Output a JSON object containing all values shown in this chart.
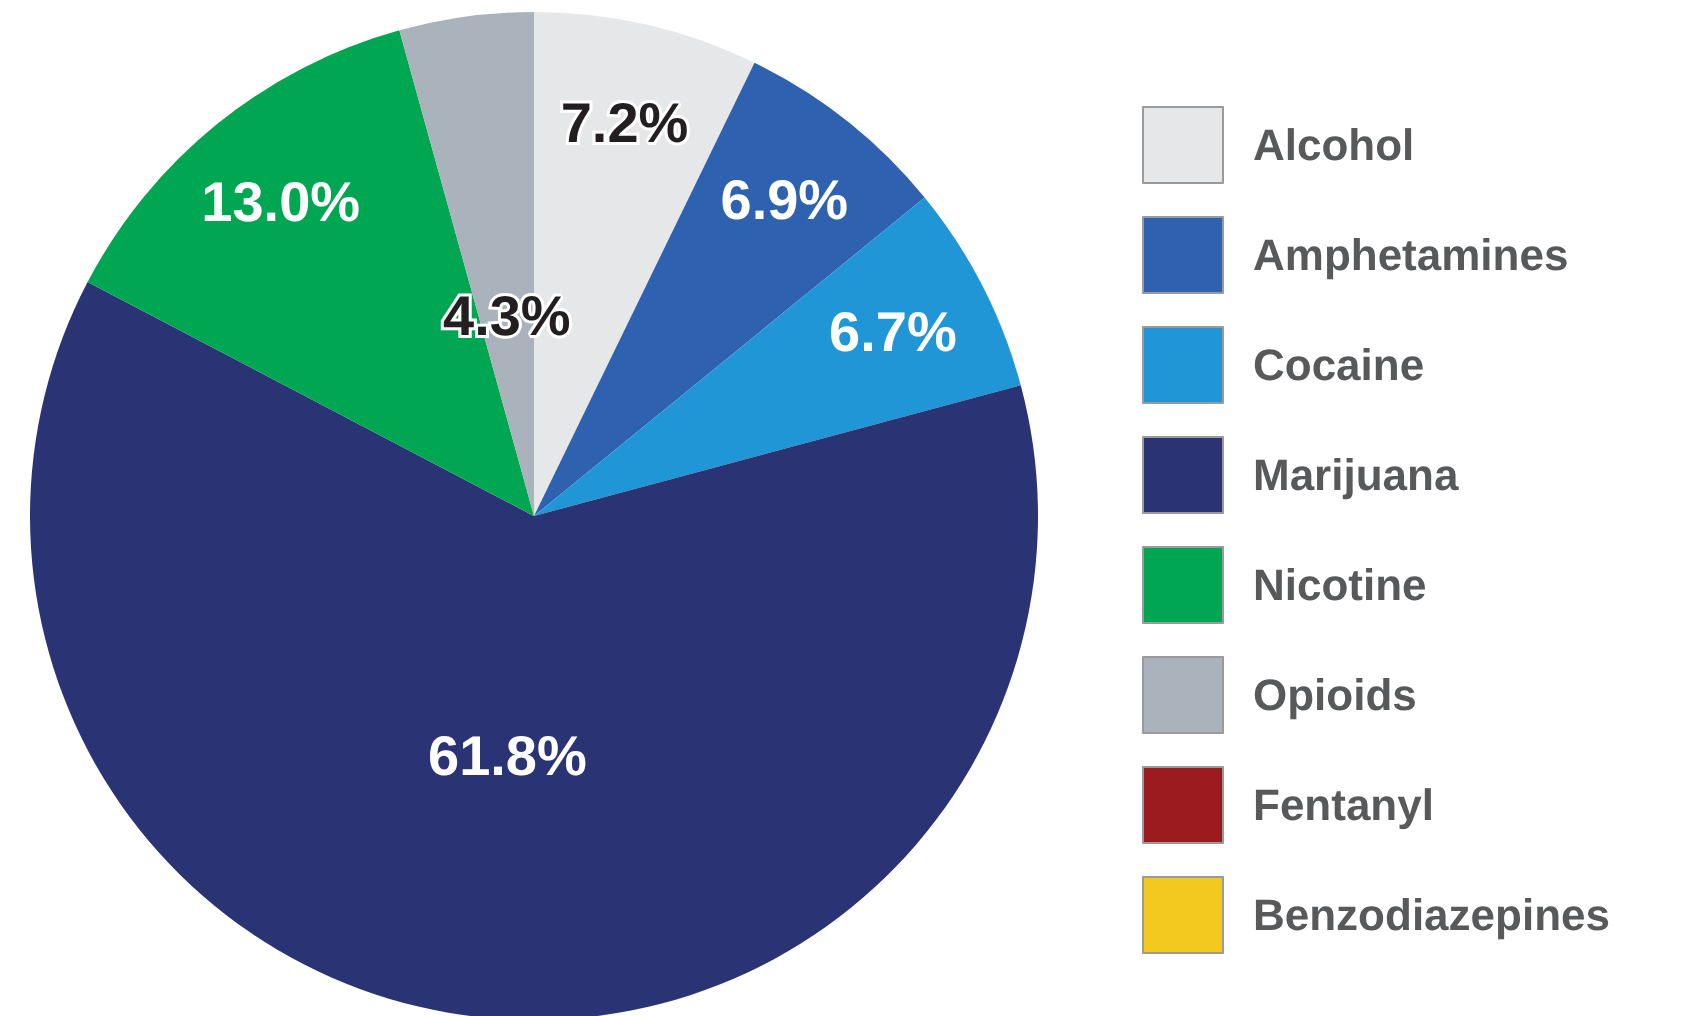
{
  "chart_data": {
    "type": "pie",
    "categories": [
      "Alcohol",
      "Amphetamines",
      "Cocaine",
      "Marijuana",
      "Nicotine",
      "Opioids",
      "Fentanyl",
      "Benzodiazepines"
    ],
    "values": [
      7.2,
      6.9,
      6.7,
      61.8,
      13.0,
      4.3,
      0,
      0
    ],
    "value_labels": [
      "7.2%",
      "6.9%",
      "6.7%",
      "61.8%",
      "13.0%",
      "4.3%",
      null,
      null
    ],
    "colors": [
      "#e6e7e8",
      "#2e62b0",
      "#2196d6",
      "#2a3474",
      "#00a651",
      "#aab2bb",
      "#9b1b1f",
      "#f4c91f"
    ],
    "legend": "right"
  }
}
